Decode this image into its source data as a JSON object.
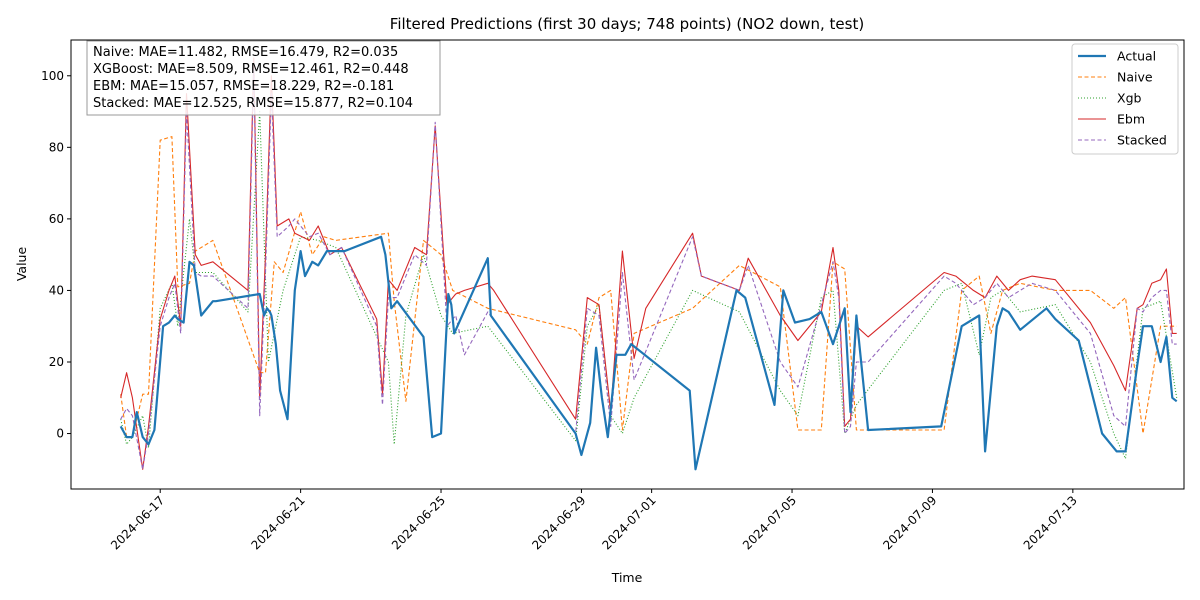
{
  "chart_data": {
    "type": "line",
    "title": "Filtered Predictions (first 30 days; 748 points) (NO2 down, test)",
    "xlabel": "Time",
    "ylabel": "Value",
    "xlim": [
      "2024-06-14T11:00",
      "2024-07-16T04:00"
    ],
    "ylim": [
      -15.5,
      110
    ],
    "yticks": [
      0,
      20,
      40,
      60,
      80,
      100
    ],
    "xticks": [
      "2024-06-17",
      "2024-06-21",
      "2024-06-25",
      "2024-06-29",
      "2024-07-01",
      "2024-07-05",
      "2024-07-09",
      "2024-07-13"
    ],
    "legend_position": "top-right",
    "grid": false,
    "annotation": [
      "Naive: MAE=11.482, RMSE=16.479, R2=0.035",
      "XGBoost: MAE=8.509, RMSE=12.461, R2=0.448",
      "EBM: MAE=15.057, RMSE=18.229, R2=-0.181",
      "Stacked: MAE=12.525, RMSE=15.877, R2=0.104"
    ],
    "series": [
      {
        "name": "Actual",
        "color": "#1f77b4",
        "style": "solid-thick",
        "x": [
          "2024-06-15T21:00",
          "2024-06-16T01:00",
          "2024-06-16T05:00",
          "2024-06-16T08:00",
          "2024-06-16T12:00",
          "2024-06-16T16:00",
          "2024-06-16T20:00",
          "2024-06-17T02:00",
          "2024-06-17T06:00",
          "2024-06-17T10:00",
          "2024-06-17T12:00",
          "2024-06-17T16:00",
          "2024-06-17T20:00",
          "2024-06-17T23:00",
          "2024-06-18T04:00",
          "2024-06-18T12:00",
          "2024-06-18T14:00",
          "2024-06-19T20:00",
          "2024-06-19T23:00",
          "2024-06-20T01:00",
          "2024-06-20T03:00",
          "2024-06-20T04:00",
          "2024-06-20T07:00",
          "2024-06-20T10:00",
          "2024-06-20T15:00",
          "2024-06-20T20:00",
          "2024-06-21T00:00",
          "2024-06-21T03:00",
          "2024-06-21T08:00",
          "2024-06-21T12:00",
          "2024-06-21T18:00",
          "2024-06-22T06:00",
          "2024-06-23T07:00",
          "2024-06-23T10:00",
          "2024-06-23T14:00",
          "2024-06-23T18:00",
          "2024-06-24T12:00",
          "2024-06-24T18:00",
          "2024-06-25T00:00",
          "2024-06-25T05:00",
          "2024-06-25T07:00",
          "2024-06-25T09:00",
          "2024-06-26T08:00",
          "2024-06-26T10:00",
          "2024-06-28T20:00",
          "2024-06-29T00:00",
          "2024-06-29T06:00",
          "2024-06-29T10:00",
          "2024-06-29T14:00",
          "2024-06-29T18:00",
          "2024-06-30T00:00",
          "2024-06-30T06:00",
          "2024-06-30T10:00",
          "2024-07-02T02:00",
          "2024-07-02T06:00",
          "2024-07-03T10:00",
          "2024-07-03T16:00",
          "2024-07-04T12:00",
          "2024-07-04T18:00",
          "2024-07-05T02:00",
          "2024-07-05T12:00",
          "2024-07-05T20:00",
          "2024-07-06T04:00",
          "2024-07-06T12:00",
          "2024-07-06T16:00",
          "2024-07-06T20:00",
          "2024-07-07T04:00",
          "2024-07-09T06:00",
          "2024-07-09T20:00",
          "2024-07-10T08:00",
          "2024-07-10T12:00",
          "2024-07-10T20:00",
          "2024-07-11T00:00",
          "2024-07-11T04:00",
          "2024-07-11T12:00",
          "2024-07-12T06:00",
          "2024-07-12T12:00",
          "2024-07-13T04:00",
          "2024-07-13T20:00",
          "2024-07-14T06:00",
          "2024-07-14T12:00",
          "2024-07-14T20:00",
          "2024-07-15T00:00",
          "2024-07-15T06:00",
          "2024-07-15T12:00",
          "2024-07-15T16:00",
          "2024-07-15T20:00",
          "2024-07-15T23:00"
        ],
        "y": [
          2,
          -1,
          -1,
          6,
          -1,
          -3,
          1,
          30,
          31,
          33,
          32,
          31,
          48,
          47,
          33,
          37,
          37,
          39,
          33,
          35,
          34,
          33,
          25,
          12,
          4,
          40,
          51,
          44,
          48,
          47,
          51,
          51,
          55,
          50,
          35,
          37,
          27,
          -1,
          0,
          39,
          36,
          28,
          49,
          33,
          0,
          -6,
          3,
          24,
          10,
          -1,
          22,
          22,
          25,
          12,
          -10,
          40,
          38,
          8,
          40,
          31,
          32,
          34,
          25,
          35,
          6,
          33,
          1,
          2,
          30,
          33,
          -5,
          30,
          35,
          34,
          29,
          35,
          32,
          26,
          0,
          -5,
          -5,
          19,
          30,
          30,
          20,
          27,
          10,
          9
        ]
      },
      {
        "name": "Naive",
        "color": "#ff7f0e",
        "style": "dashed",
        "x": [
          "2024-06-15T21:00",
          "2024-06-16T01:00",
          "2024-06-16T05:00",
          "2024-06-16T12:00",
          "2024-06-16T16:00",
          "2024-06-17T00:00",
          "2024-06-17T08:00",
          "2024-06-17T12:00",
          "2024-06-17T20:00",
          "2024-06-18T00:00",
          "2024-06-18T12:00",
          "2024-06-19T20:00",
          "2024-06-20T00:00",
          "2024-06-20T06:00",
          "2024-06-20T12:00",
          "2024-06-21T00:00",
          "2024-06-21T08:00",
          "2024-06-21T16:00",
          "2024-06-22T00:00",
          "2024-06-23T12:00",
          "2024-06-23T16:00",
          "2024-06-24T00:00",
          "2024-06-24T12:00",
          "2024-06-25T00:00",
          "2024-06-25T08:00",
          "2024-06-26T08:00",
          "2024-06-28T20:00",
          "2024-06-29T04:00",
          "2024-06-29T12:00",
          "2024-06-29T20:00",
          "2024-06-30T04:00",
          "2024-06-30T12:00",
          "2024-07-02T04:00",
          "2024-07-03T12:00",
          "2024-07-04T16:00",
          "2024-07-05T04:00",
          "2024-07-05T20:00",
          "2024-07-06T04:00",
          "2024-07-06T12:00",
          "2024-07-06T20:00",
          "2024-07-09T08:00",
          "2024-07-09T20:00",
          "2024-07-10T08:00",
          "2024-07-10T16:00",
          "2024-07-11T00:00",
          "2024-07-11T12:00",
          "2024-07-12T12:00",
          "2024-07-13T12:00",
          "2024-07-14T04:00",
          "2024-07-14T12:00",
          "2024-07-15T00:00",
          "2024-07-15T12:00",
          "2024-07-15T23:00"
        ],
        "y": [
          11,
          -1,
          -1,
          11,
          11,
          82,
          83,
          41,
          42,
          51,
          54,
          17,
          17,
          48,
          45,
          62,
          50,
          55,
          54,
          56,
          37,
          9,
          54,
          50,
          40,
          35,
          29,
          25,
          38,
          40,
          1,
          28,
          35,
          47,
          41,
          1,
          1,
          48,
          46,
          1,
          1,
          40,
          44,
          28,
          40,
          42,
          40,
          40,
          35,
          38,
          0,
          30,
          30
        ]
      },
      {
        "name": "Xgb",
        "color": "#2ca02c",
        "style": "dotted",
        "x": [
          "2024-06-15T21:00",
          "2024-06-16T01:00",
          "2024-06-16T05:00",
          "2024-06-16T12:00",
          "2024-06-16T16:00",
          "2024-06-17T00:00",
          "2024-06-17T08:00",
          "2024-06-17T12:00",
          "2024-06-17T20:00",
          "2024-06-18T00:00",
          "2024-06-18T12:00",
          "2024-06-19T12:00",
          "2024-06-19T20:00",
          "2024-06-20T02:00",
          "2024-06-20T12:00",
          "2024-06-21T00:00",
          "2024-06-21T12:00",
          "2024-06-22T00:00",
          "2024-06-23T12:00",
          "2024-06-23T16:00",
          "2024-06-24T00:00",
          "2024-06-24T12:00",
          "2024-06-25T00:00",
          "2024-06-25T08:00",
          "2024-06-26T08:00",
          "2024-06-28T20:00",
          "2024-06-29T04:00",
          "2024-06-29T12:00",
          "2024-06-29T20:00",
          "2024-06-30T04:00",
          "2024-06-30T12:00",
          "2024-07-02T04:00",
          "2024-07-03T12:00",
          "2024-07-04T16:00",
          "2024-07-05T04:00",
          "2024-07-05T20:00",
          "2024-07-06T04:00",
          "2024-07-06T12:00",
          "2024-07-06T20:00",
          "2024-07-09T08:00",
          "2024-07-09T20:00",
          "2024-07-10T08:00",
          "2024-07-10T16:00",
          "2024-07-11T00:00",
          "2024-07-11T12:00",
          "2024-07-12T12:00",
          "2024-07-13T12:00",
          "2024-07-14T04:00",
          "2024-07-14T12:00",
          "2024-07-15T00:00",
          "2024-07-15T12:00",
          "2024-07-15T23:00"
        ],
        "y": [
          4,
          -3,
          -1,
          5,
          -4,
          35,
          42,
          30,
          60,
          45,
          45,
          34,
          90,
          20,
          40,
          55,
          54,
          52,
          20,
          -3,
          33,
          50,
          33,
          28,
          30,
          -2,
          30,
          36,
          5,
          0,
          10,
          40,
          34,
          12,
          5,
          38,
          40,
          0,
          8,
          40,
          42,
          22,
          38,
          40,
          34,
          36,
          20,
          0,
          -7,
          35,
          37,
          10
        ]
      },
      {
        "name": "Ebm",
        "color": "#d62728",
        "style": "solid",
        "x": [
          "2024-06-15T21:00",
          "2024-06-16T01:00",
          "2024-06-16T05:00",
          "2024-06-16T12:00",
          "2024-06-16T16:00",
          "2024-06-17T00:00",
          "2024-06-17T06:00",
          "2024-06-17T10:00",
          "2024-06-17T14:00",
          "2024-06-17T18:00",
          "2024-06-18T00:00",
          "2024-06-18T04:00",
          "2024-06-18T12:00",
          "2024-06-19T12:00",
          "2024-06-19T16:00",
          "2024-06-19T20:00",
          "2024-06-20T00:00",
          "2024-06-20T04:00",
          "2024-06-20T08:00",
          "2024-06-20T16:00",
          "2024-06-20T20:00",
          "2024-06-21T06:00",
          "2024-06-21T12:00",
          "2024-06-21T20:00",
          "2024-06-22T04:00",
          "2024-06-23T04:00",
          "2024-06-23T08:00",
          "2024-06-23T12:00",
          "2024-06-23T18:00",
          "2024-06-24T06:00",
          "2024-06-24T14:00",
          "2024-06-24T20:00",
          "2024-06-25T04:00",
          "2024-06-25T10:00",
          "2024-06-25T16:00",
          "2024-06-26T08:00",
          "2024-06-26T12:00",
          "2024-06-28T20:00",
          "2024-06-29T04:00",
          "2024-06-29T12:00",
          "2024-06-29T20:00",
          "2024-06-30T04:00",
          "2024-06-30T12:00",
          "2024-06-30T20:00",
          "2024-07-02T04:00",
          "2024-07-02T10:00",
          "2024-07-03T12:00",
          "2024-07-03T18:00",
          "2024-07-04T16:00",
          "2024-07-05T04:00",
          "2024-07-05T20:00",
          "2024-07-06T04:00",
          "2024-07-06T08:00",
          "2024-07-06T12:00",
          "2024-07-06T16:00",
          "2024-07-06T20:00",
          "2024-07-07T04:00",
          "2024-07-09T08:00",
          "2024-07-09T16:00",
          "2024-07-10T04:00",
          "2024-07-10T12:00",
          "2024-07-10T20:00",
          "2024-07-11T04:00",
          "2024-07-11T12:00",
          "2024-07-11T20:00",
          "2024-07-12T12:00",
          "2024-07-13T12:00",
          "2024-07-14T04:00",
          "2024-07-14T12:00",
          "2024-07-14T20:00",
          "2024-07-15T00:00",
          "2024-07-15T06:00",
          "2024-07-15T12:00",
          "2024-07-15T16:00",
          "2024-07-15T20:00",
          "2024-07-15T23:00"
        ],
        "y": [
          10,
          17,
          10,
          -10,
          2,
          32,
          40,
          44,
          30,
          95,
          50,
          47,
          48,
          40,
          105,
          10,
          50,
          100,
          58,
          60,
          56,
          54,
          58,
          50,
          52,
          32,
          11,
          43,
          40,
          52,
          50,
          86,
          36,
          39,
          40,
          42,
          40,
          4,
          38,
          36,
          6,
          51,
          21,
          35,
          56,
          44,
          40,
          49,
          33,
          26,
          34,
          52,
          40,
          2,
          4,
          30,
          27,
          45,
          44,
          40,
          38,
          44,
          40,
          43,
          44,
          43,
          31,
          19,
          12,
          35,
          36,
          42,
          43,
          46,
          28,
          28
        ]
      },
      {
        "name": "Stacked",
        "color": "#9467bd",
        "style": "dashed",
        "x": [
          "2024-06-15T21:00",
          "2024-06-16T01:00",
          "2024-06-16T05:00",
          "2024-06-16T12:00",
          "2024-06-16T16:00",
          "2024-06-17T00:00",
          "2024-06-17T06:00",
          "2024-06-17T10:00",
          "2024-06-17T14:00",
          "2024-06-17T18:00",
          "2024-06-18T00:00",
          "2024-06-18T04:00",
          "2024-06-18T12:00",
          "2024-06-19T12:00",
          "2024-06-19T16:00",
          "2024-06-19T20:00",
          "2024-06-20T00:00",
          "2024-06-20T04:00",
          "2024-06-20T08:00",
          "2024-06-20T16:00",
          "2024-06-20T20:00",
          "2024-06-21T06:00",
          "2024-06-21T12:00",
          "2024-06-21T20:00",
          "2024-06-22T04:00",
          "2024-06-23T04:00",
          "2024-06-23T08:00",
          "2024-06-23T12:00",
          "2024-06-23T18:00",
          "2024-06-24T06:00",
          "2024-06-24T14:00",
          "2024-06-24T20:00",
          "2024-06-25T04:00",
          "2024-06-25T10:00",
          "2024-06-25T16:00",
          "2024-06-26T08:00",
          "2024-06-28T20:00",
          "2024-06-29T04:00",
          "2024-06-29T12:00",
          "2024-06-29T20:00",
          "2024-06-30T04:00",
          "2024-06-30T12:00",
          "2024-07-02T04:00",
          "2024-07-02T10:00",
          "2024-07-03T12:00",
          "2024-07-03T18:00",
          "2024-07-04T16:00",
          "2024-07-05T04:00",
          "2024-07-05T20:00",
          "2024-07-06T04:00",
          "2024-07-06T08:00",
          "2024-07-06T12:00",
          "2024-07-06T16:00",
          "2024-07-06T20:00",
          "2024-07-07T04:00",
          "2024-07-09T08:00",
          "2024-07-09T16:00",
          "2024-07-10T04:00",
          "2024-07-10T12:00",
          "2024-07-10T20:00",
          "2024-07-11T04:00",
          "2024-07-11T12:00",
          "2024-07-11T20:00",
          "2024-07-12T12:00",
          "2024-07-13T12:00",
          "2024-07-14T04:00",
          "2024-07-14T12:00",
          "2024-07-14T20:00",
          "2024-07-15T00:00",
          "2024-07-15T06:00",
          "2024-07-15T12:00",
          "2024-07-15T16:00",
          "2024-07-15T20:00",
          "2024-07-15T23:00"
        ],
        "y": [
          4,
          7,
          5,
          -10,
          0,
          30,
          38,
          42,
          28,
          90,
          45,
          44,
          44,
          35,
          102,
          5,
          45,
          95,
          55,
          58,
          60,
          55,
          56,
          50,
          52,
          30,
          8,
          38,
          38,
          50,
          47,
          87,
          30,
          33,
          22,
          34,
          0,
          35,
          33,
          2,
          45,
          15,
          55,
          44,
          40,
          47,
          20,
          13,
          36,
          48,
          38,
          0,
          2,
          20,
          20,
          44,
          42,
          36,
          38,
          42,
          38,
          40,
          42,
          40,
          28,
          5,
          2,
          35,
          34,
          38,
          40,
          40,
          25,
          25
        ]
      }
    ]
  }
}
